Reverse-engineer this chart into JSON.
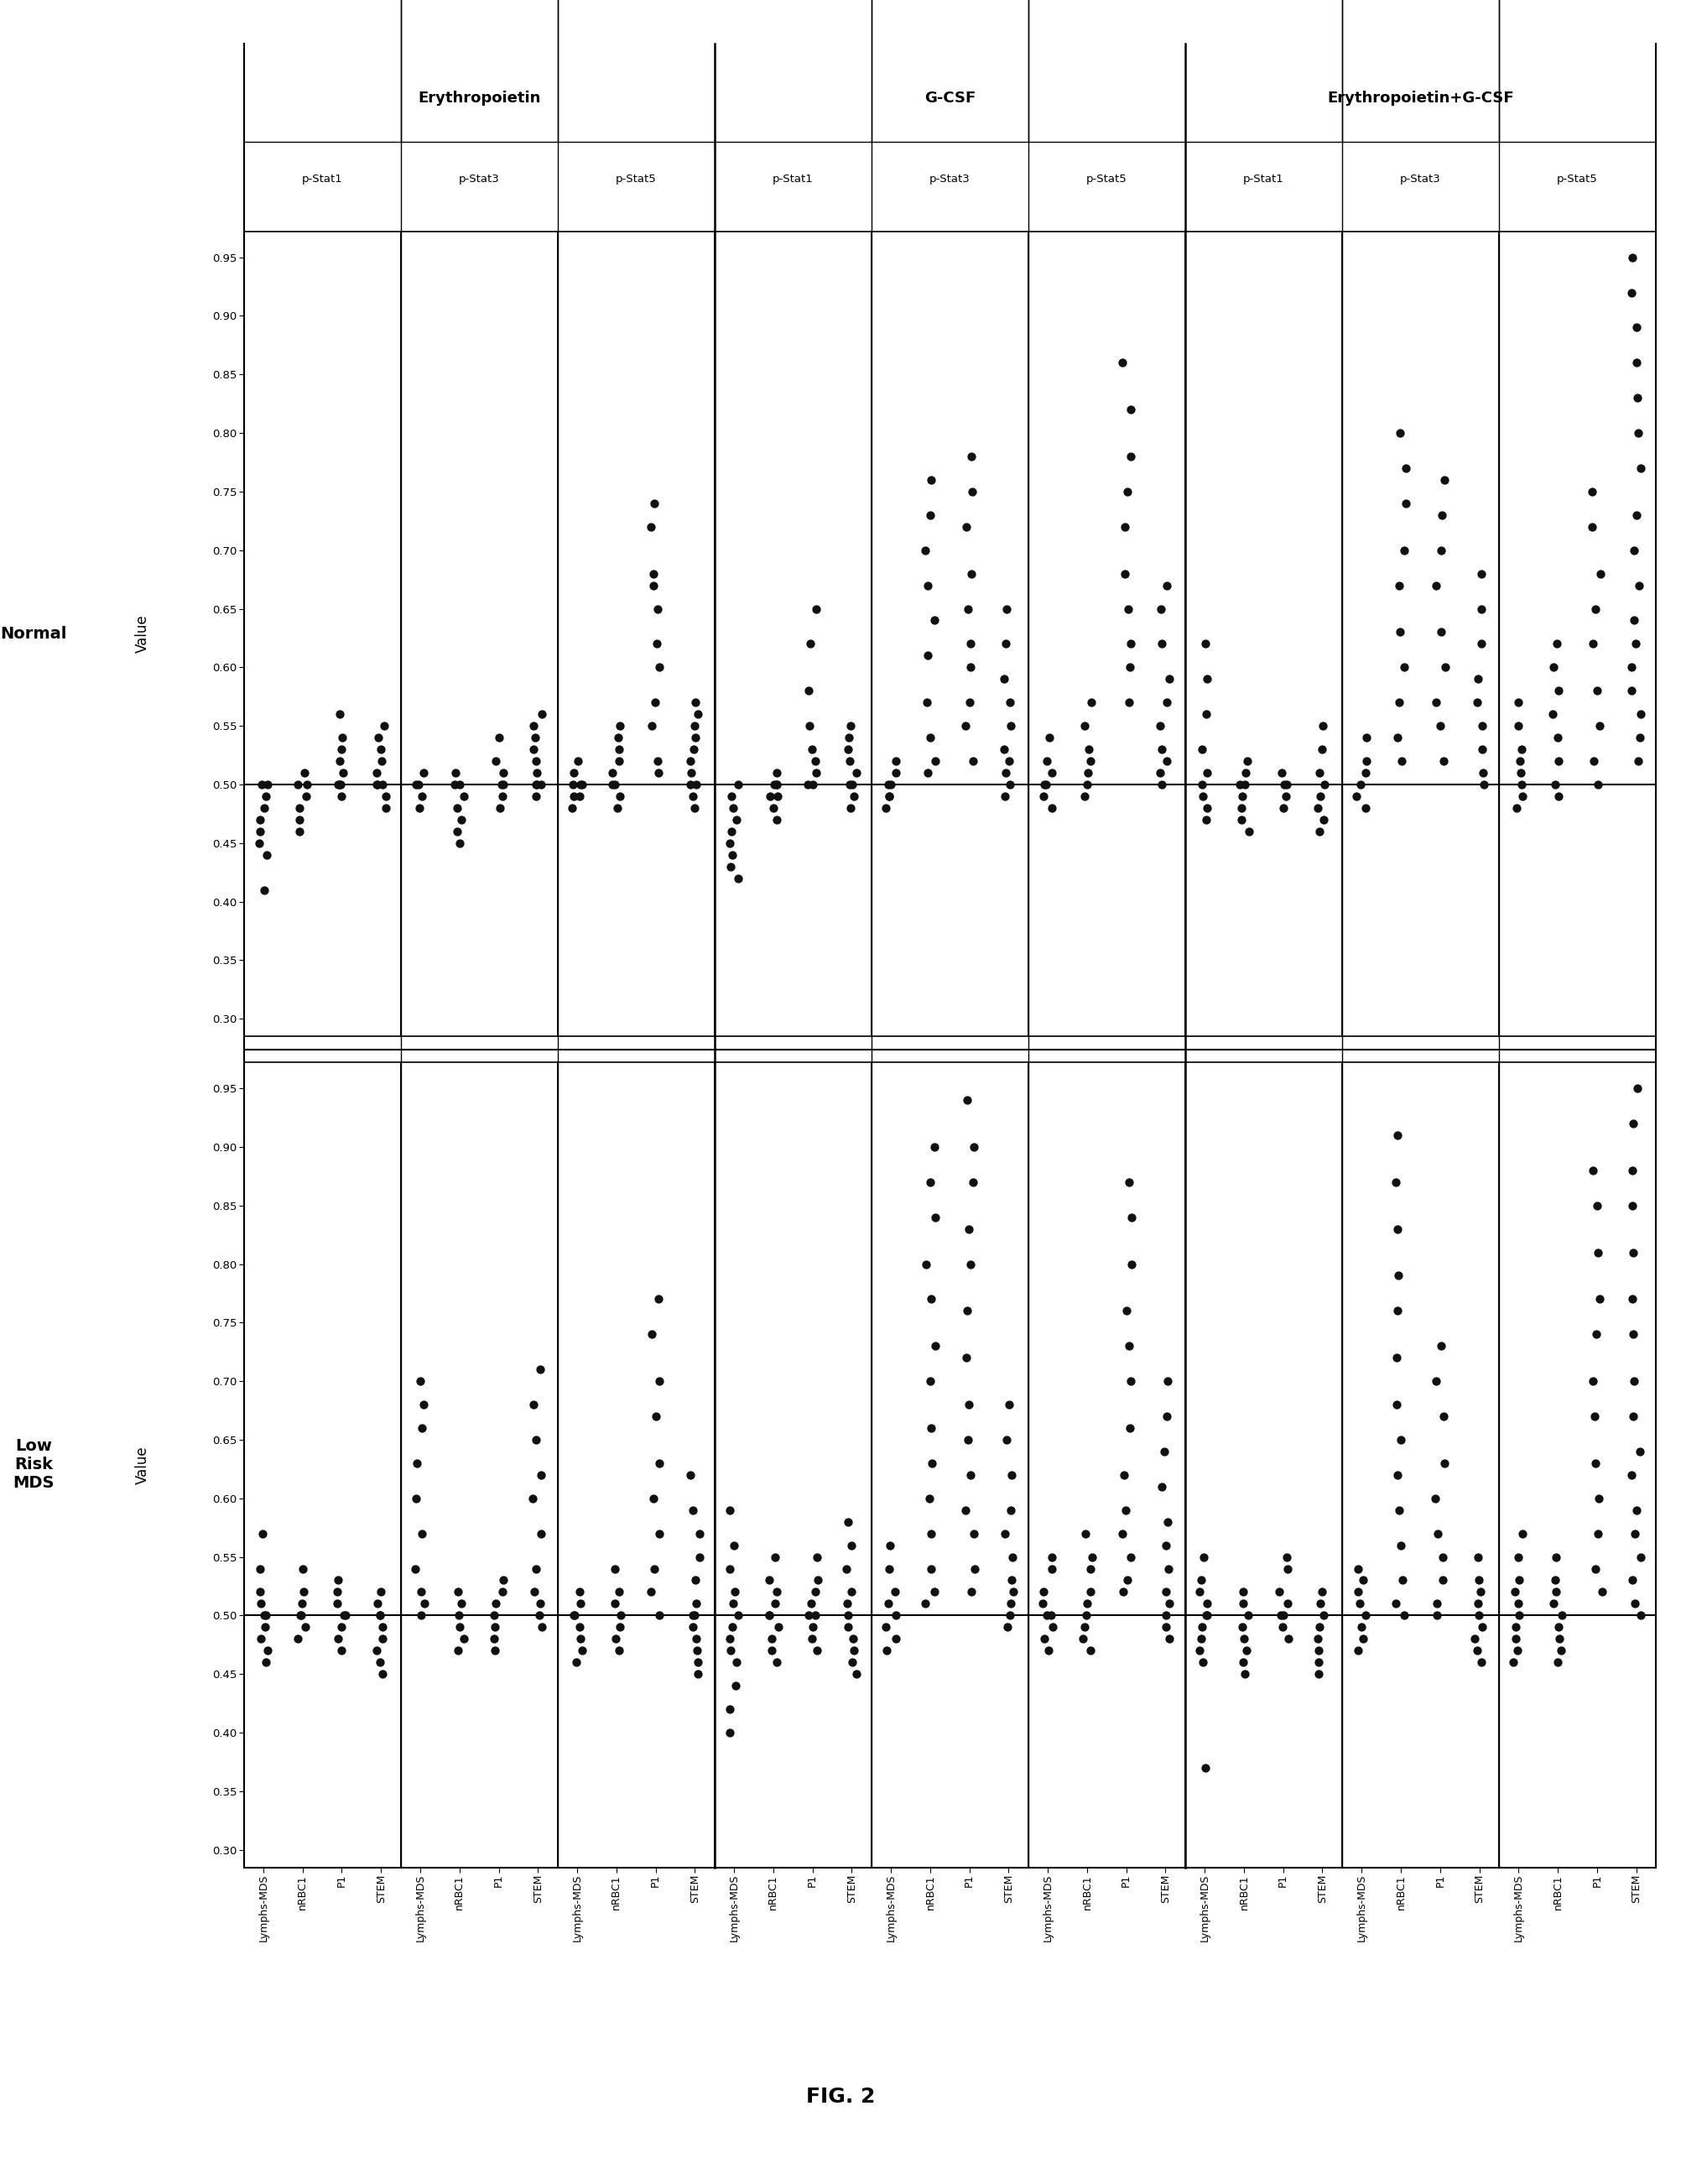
{
  "title": "FIG. 2",
  "group_labels": [
    "Erythropoietin",
    "G-CSF",
    "Erythropoietin+G-CSF"
  ],
  "stat_labels": [
    "p-Stat1",
    "p-Stat3",
    "p-Stat5"
  ],
  "row_labels": [
    "Normal",
    "Low\nRisk\nMDS"
  ],
  "ylabel": "Value",
  "yticks": [
    0.3,
    0.35,
    0.4,
    0.45,
    0.5,
    0.55,
    0.6,
    0.65,
    0.7,
    0.75,
    0.8,
    0.85,
    0.9,
    0.95
  ],
  "ylim": [
    0.285,
    0.972
  ],
  "background_color": "#ffffff",
  "dot_color": "#111111",
  "dot_size": 55,
  "cell_types_order": [
    "Lymphs-MDS",
    "nRBC1",
    "P1",
    "STEM"
  ],
  "normal_data": {
    "Erythropoietin_pStat1": {
      "Lymphs-MDS": [
        0.5,
        0.5,
        0.49,
        0.48,
        0.47,
        0.46,
        0.45,
        0.44,
        0.41
      ],
      "nRBC1": [
        0.51,
        0.5,
        0.5,
        0.49,
        0.48,
        0.47,
        0.46
      ],
      "P1": [
        0.56,
        0.54,
        0.53,
        0.52,
        0.51,
        0.5,
        0.5,
        0.5,
        0.49
      ],
      "STEM": [
        0.55,
        0.54,
        0.53,
        0.52,
        0.51,
        0.5,
        0.5,
        0.5,
        0.49,
        0.48
      ]
    },
    "Erythropoietin_pStat3": {
      "Lymphs-MDS": [
        0.51,
        0.5,
        0.5,
        0.49,
        0.48
      ],
      "nRBC1": [
        0.51,
        0.5,
        0.5,
        0.49,
        0.48,
        0.47,
        0.46,
        0.45
      ],
      "P1": [
        0.54,
        0.52,
        0.51,
        0.5,
        0.5,
        0.49,
        0.48
      ],
      "STEM": [
        0.56,
        0.55,
        0.54,
        0.53,
        0.52,
        0.51,
        0.5,
        0.5,
        0.5,
        0.49
      ]
    },
    "Erythropoietin_pStat5": {
      "Lymphs-MDS": [
        0.52,
        0.51,
        0.5,
        0.5,
        0.5,
        0.49,
        0.49,
        0.48
      ],
      "nRBC1": [
        0.55,
        0.54,
        0.53,
        0.52,
        0.51,
        0.5,
        0.5,
        0.49,
        0.48
      ],
      "P1": [
        0.74,
        0.72,
        0.68,
        0.67,
        0.65,
        0.62,
        0.6,
        0.57,
        0.55,
        0.52,
        0.51
      ],
      "STEM": [
        0.57,
        0.56,
        0.55,
        0.54,
        0.53,
        0.52,
        0.51,
        0.5,
        0.5,
        0.49,
        0.48
      ]
    },
    "GCSF_pStat1": {
      "Lymphs-MDS": [
        0.5,
        0.49,
        0.48,
        0.47,
        0.46,
        0.45,
        0.44,
        0.43,
        0.42
      ],
      "nRBC1": [
        0.51,
        0.5,
        0.5,
        0.5,
        0.49,
        0.49,
        0.48,
        0.47
      ],
      "P1": [
        0.65,
        0.62,
        0.58,
        0.55,
        0.53,
        0.52,
        0.51,
        0.5,
        0.5
      ],
      "STEM": [
        0.55,
        0.54,
        0.53,
        0.52,
        0.51,
        0.5,
        0.5,
        0.49,
        0.48
      ]
    },
    "GCSF_pStat3": {
      "Lymphs-MDS": [
        0.52,
        0.51,
        0.5,
        0.5,
        0.49,
        0.49,
        0.48
      ],
      "nRBC1": [
        0.76,
        0.73,
        0.7,
        0.67,
        0.64,
        0.61,
        0.57,
        0.54,
        0.52,
        0.51
      ],
      "P1": [
        0.78,
        0.75,
        0.72,
        0.68,
        0.65,
        0.62,
        0.6,
        0.57,
        0.55,
        0.52
      ],
      "STEM": [
        0.65,
        0.62,
        0.59,
        0.57,
        0.55,
        0.53,
        0.52,
        0.51,
        0.5,
        0.49
      ]
    },
    "GCSF_pStat5": {
      "Lymphs-MDS": [
        0.54,
        0.52,
        0.51,
        0.5,
        0.5,
        0.49,
        0.48
      ],
      "nRBC1": [
        0.57,
        0.55,
        0.53,
        0.52,
        0.51,
        0.5,
        0.49
      ],
      "P1": [
        0.86,
        0.82,
        0.78,
        0.75,
        0.72,
        0.68,
        0.65,
        0.62,
        0.6,
        0.57
      ],
      "STEM": [
        0.67,
        0.65,
        0.62,
        0.59,
        0.57,
        0.55,
        0.53,
        0.52,
        0.51,
        0.5
      ]
    },
    "EpoGCSF_pStat1": {
      "Lymphs-MDS": [
        0.62,
        0.59,
        0.56,
        0.53,
        0.51,
        0.5,
        0.49,
        0.48,
        0.47
      ],
      "nRBC1": [
        0.52,
        0.51,
        0.5,
        0.5,
        0.49,
        0.48,
        0.47,
        0.46
      ],
      "P1": [
        0.51,
        0.5,
        0.5,
        0.49,
        0.48
      ],
      "STEM": [
        0.55,
        0.53,
        0.51,
        0.5,
        0.49,
        0.48,
        0.47,
        0.46
      ]
    },
    "EpoGCSF_pStat3": {
      "Lymphs-MDS": [
        0.54,
        0.52,
        0.51,
        0.5,
        0.49,
        0.48
      ],
      "nRBC1": [
        0.8,
        0.77,
        0.74,
        0.7,
        0.67,
        0.63,
        0.6,
        0.57,
        0.54,
        0.52
      ],
      "P1": [
        0.76,
        0.73,
        0.7,
        0.67,
        0.63,
        0.6,
        0.57,
        0.55,
        0.52
      ],
      "STEM": [
        0.68,
        0.65,
        0.62,
        0.59,
        0.57,
        0.55,
        0.53,
        0.51,
        0.5
      ]
    },
    "EpoGCSF_pStat5": {
      "Lymphs-MDS": [
        0.57,
        0.55,
        0.53,
        0.52,
        0.51,
        0.5,
        0.49,
        0.48
      ],
      "nRBC1": [
        0.62,
        0.6,
        0.58,
        0.56,
        0.54,
        0.52,
        0.5,
        0.49
      ],
      "P1": [
        0.75,
        0.72,
        0.68,
        0.65,
        0.62,
        0.58,
        0.55,
        0.52,
        0.5
      ],
      "STEM": [
        0.95,
        0.92,
        0.89,
        0.86,
        0.83,
        0.8,
        0.77,
        0.73,
        0.7,
        0.67,
        0.64,
        0.62,
        0.6,
        0.58,
        0.56,
        0.54,
        0.52
      ]
    }
  },
  "lowrisk_data": {
    "Erythropoietin_pStat1": {
      "Lymphs-MDS": [
        0.57,
        0.54,
        0.52,
        0.51,
        0.5,
        0.5,
        0.49,
        0.48,
        0.47,
        0.46
      ],
      "nRBC1": [
        0.54,
        0.52,
        0.51,
        0.5,
        0.5,
        0.49,
        0.48
      ],
      "P1": [
        0.53,
        0.52,
        0.51,
        0.5,
        0.5,
        0.49,
        0.48,
        0.47
      ],
      "STEM": [
        0.52,
        0.51,
        0.5,
        0.5,
        0.49,
        0.48,
        0.47,
        0.46,
        0.45
      ]
    },
    "Erythropoietin_pStat3": {
      "Lymphs-MDS": [
        0.7,
        0.68,
        0.66,
        0.63,
        0.6,
        0.57,
        0.54,
        0.52,
        0.51,
        0.5
      ],
      "nRBC1": [
        0.52,
        0.51,
        0.5,
        0.49,
        0.48,
        0.47
      ],
      "P1": [
        0.53,
        0.52,
        0.51,
        0.5,
        0.49,
        0.48,
        0.47
      ],
      "STEM": [
        0.71,
        0.68,
        0.65,
        0.62,
        0.6,
        0.57,
        0.54,
        0.52,
        0.51,
        0.5,
        0.49
      ]
    },
    "Erythropoietin_pStat5": {
      "Lymphs-MDS": [
        0.52,
        0.51,
        0.5,
        0.5,
        0.49,
        0.48,
        0.47,
        0.46
      ],
      "nRBC1": [
        0.54,
        0.52,
        0.51,
        0.5,
        0.49,
        0.48,
        0.47
      ],
      "P1": [
        0.77,
        0.74,
        0.7,
        0.67,
        0.63,
        0.6,
        0.57,
        0.54,
        0.52,
        0.5
      ],
      "STEM": [
        0.62,
        0.59,
        0.57,
        0.55,
        0.53,
        0.51,
        0.5,
        0.5,
        0.49,
        0.48,
        0.47,
        0.46,
        0.45
      ]
    },
    "GCSF_pStat1": {
      "Lymphs-MDS": [
        0.59,
        0.56,
        0.54,
        0.52,
        0.51,
        0.5,
        0.49,
        0.48,
        0.47,
        0.46,
        0.44,
        0.42,
        0.4
      ],
      "nRBC1": [
        0.55,
        0.53,
        0.52,
        0.51,
        0.5,
        0.5,
        0.49,
        0.48,
        0.47,
        0.46
      ],
      "P1": [
        0.55,
        0.53,
        0.52,
        0.51,
        0.5,
        0.5,
        0.49,
        0.48,
        0.47
      ],
      "STEM": [
        0.58,
        0.56,
        0.54,
        0.52,
        0.51,
        0.5,
        0.49,
        0.48,
        0.47,
        0.46,
        0.45
      ]
    },
    "GCSF_pStat3": {
      "Lymphs-MDS": [
        0.56,
        0.54,
        0.52,
        0.51,
        0.5,
        0.49,
        0.48,
        0.47
      ],
      "nRBC1": [
        0.9,
        0.87,
        0.84,
        0.8,
        0.77,
        0.73,
        0.7,
        0.66,
        0.63,
        0.6,
        0.57,
        0.54,
        0.52,
        0.51
      ],
      "P1": [
        0.94,
        0.9,
        0.87,
        0.83,
        0.8,
        0.76,
        0.72,
        0.68,
        0.65,
        0.62,
        0.59,
        0.57,
        0.54,
        0.52
      ],
      "STEM": [
        0.68,
        0.65,
        0.62,
        0.59,
        0.57,
        0.55,
        0.53,
        0.52,
        0.51,
        0.5,
        0.49
      ]
    },
    "GCSF_pStat5": {
      "Lymphs-MDS": [
        0.55,
        0.54,
        0.52,
        0.51,
        0.5,
        0.5,
        0.49,
        0.48,
        0.47
      ],
      "nRBC1": [
        0.57,
        0.55,
        0.54,
        0.52,
        0.51,
        0.5,
        0.49,
        0.48,
        0.47
      ],
      "P1": [
        0.87,
        0.84,
        0.8,
        0.76,
        0.73,
        0.7,
        0.66,
        0.62,
        0.59,
        0.57,
        0.55,
        0.53,
        0.52
      ],
      "STEM": [
        0.7,
        0.67,
        0.64,
        0.61,
        0.58,
        0.56,
        0.54,
        0.52,
        0.51,
        0.5,
        0.49,
        0.48
      ]
    },
    "EpoGCSF_pStat1": {
      "Lymphs-MDS": [
        0.55,
        0.53,
        0.52,
        0.51,
        0.5,
        0.5,
        0.49,
        0.48,
        0.47,
        0.46,
        0.37
      ],
      "nRBC1": [
        0.52,
        0.51,
        0.5,
        0.49,
        0.48,
        0.47,
        0.46,
        0.45
      ],
      "P1": [
        0.55,
        0.54,
        0.52,
        0.51,
        0.5,
        0.5,
        0.49,
        0.48
      ],
      "STEM": [
        0.52,
        0.51,
        0.5,
        0.49,
        0.48,
        0.47,
        0.46,
        0.45
      ]
    },
    "EpoGCSF_pStat3": {
      "Lymphs-MDS": [
        0.54,
        0.53,
        0.52,
        0.51,
        0.5,
        0.49,
        0.48,
        0.47
      ],
      "nRBC1": [
        0.91,
        0.87,
        0.83,
        0.79,
        0.76,
        0.72,
        0.68,
        0.65,
        0.62,
        0.59,
        0.56,
        0.53,
        0.51,
        0.5
      ],
      "P1": [
        0.73,
        0.7,
        0.67,
        0.63,
        0.6,
        0.57,
        0.55,
        0.53,
        0.51,
        0.5
      ],
      "STEM": [
        0.55,
        0.53,
        0.52,
        0.51,
        0.5,
        0.49,
        0.48,
        0.47,
        0.46
      ]
    },
    "EpoGCSF_pStat5": {
      "Lymphs-MDS": [
        0.57,
        0.55,
        0.53,
        0.52,
        0.51,
        0.5,
        0.49,
        0.48,
        0.47,
        0.46
      ],
      "nRBC1": [
        0.55,
        0.53,
        0.52,
        0.51,
        0.5,
        0.49,
        0.48,
        0.47,
        0.46
      ],
      "P1": [
        0.88,
        0.85,
        0.81,
        0.77,
        0.74,
        0.7,
        0.67,
        0.63,
        0.6,
        0.57,
        0.54,
        0.52
      ],
      "STEM": [
        0.95,
        0.92,
        0.88,
        0.85,
        0.81,
        0.77,
        0.74,
        0.7,
        0.67,
        0.64,
        0.62,
        0.59,
        0.57,
        0.55,
        0.53,
        0.51,
        0.5
      ]
    }
  }
}
